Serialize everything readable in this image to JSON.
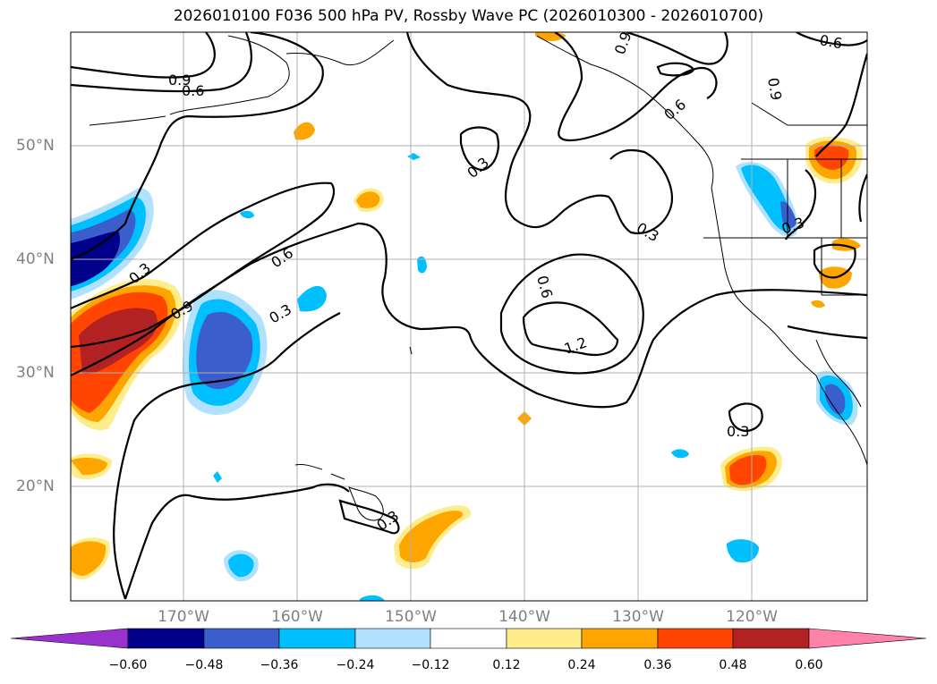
{
  "title": "2026010100 F036 500 hPa PV, Rossby Wave PC (2026010300 - 2026010700)",
  "axes": {
    "lon_labels": [
      "170°W",
      "160°W",
      "150°W",
      "140°W",
      "130°W",
      "120°W"
    ],
    "lat_labels": [
      "50°N",
      "40°N",
      "30°N",
      "20°N"
    ]
  },
  "contour_labels": [
    "0.9",
    "0.6",
    "0.3",
    "0.6",
    "0.9",
    "0.3",
    "0.6",
    "0.3",
    "0.9",
    "0.3",
    "1.2",
    "0.3",
    "0.3",
    "0.3",
    "0.6",
    "0.9",
    "0.6"
  ],
  "colorbar": {
    "ticks": [
      "−0.60",
      "−0.48",
      "−0.36",
      "−0.24",
      "−0.12",
      "0.12",
      "0.24",
      "0.36",
      "0.48",
      "0.60"
    ],
    "colors": [
      "#9932cc",
      "#00008b",
      "#3a5fcd",
      "#00bfff",
      "#b0e2ff",
      "#ffffff",
      "#ffec8b",
      "#ffa500",
      "#ff4500",
      "#b22222",
      "#ff82ab"
    ]
  }
}
